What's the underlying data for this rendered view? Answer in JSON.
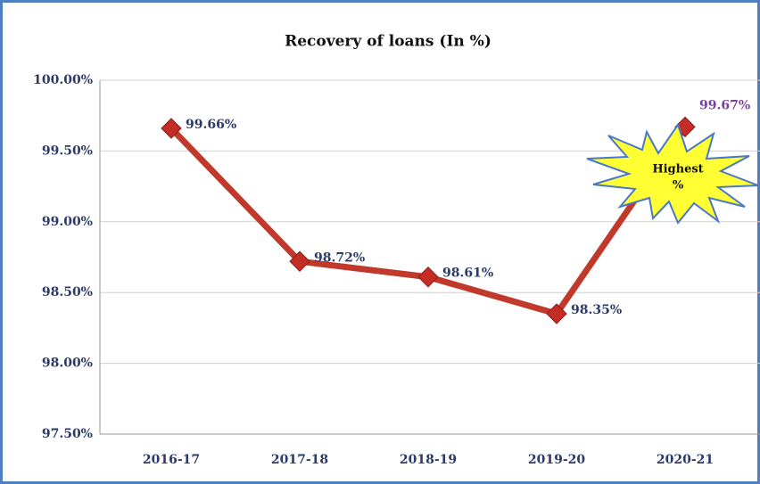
{
  "chart_data": {
    "type": "line",
    "title": "Recovery of loans (In %)",
    "categories": [
      "2016-17",
      "2017-18",
      "2018-19",
      "2019-20",
      "2020-21"
    ],
    "series": [
      {
        "name": "Recovery of loans",
        "color": "#c0392b",
        "marker_color": "#c32d25",
        "values": [
          99.66,
          98.72,
          98.61,
          98.35,
          99.67
        ],
        "value_labels": [
          "99.66%",
          "98.72%",
          "98.61%",
          "98.35%",
          "99.67%"
        ],
        "value_label_colors": [
          "#2b3a67",
          "#2b3a67",
          "#2b3a67",
          "#2b3a67",
          "#7b3fa0"
        ]
      }
    ],
    "ylim": [
      97.5,
      100
    ],
    "yticks": [
      {
        "value": 97.5,
        "label": "97.50%"
      },
      {
        "value": 98,
        "label": "98.00%"
      },
      {
        "value": 98.5,
        "label": "98.50%"
      },
      {
        "value": 99,
        "label": "99.00%"
      },
      {
        "value": 99.5,
        "label": "99.50%"
      },
      {
        "value": 100,
        "label": "100.00%"
      }
    ],
    "grid": true,
    "annotation_lines": [
      "Highest",
      "%"
    ]
  }
}
